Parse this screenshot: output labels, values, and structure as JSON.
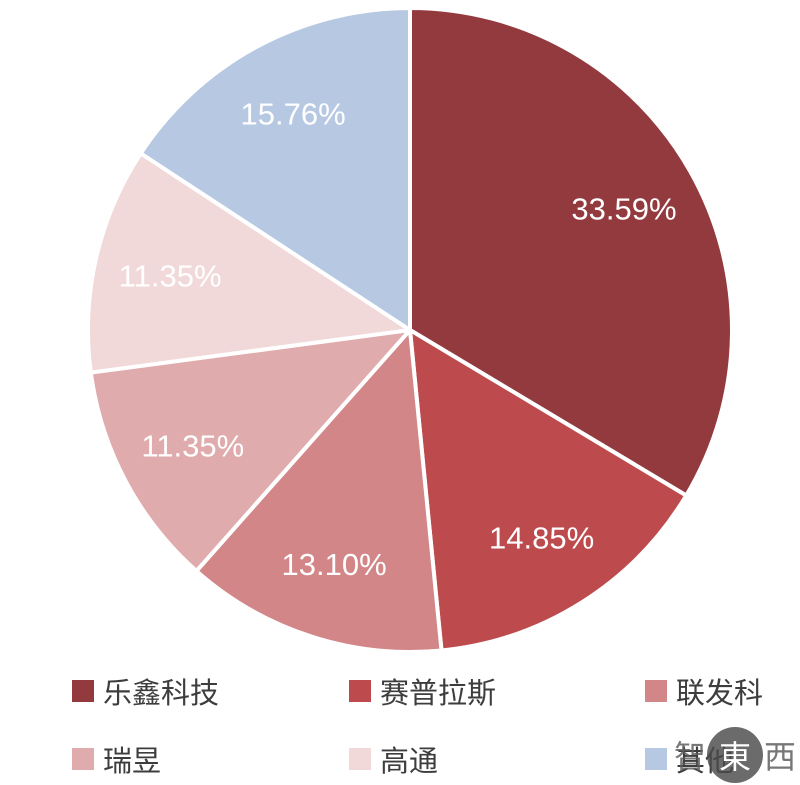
{
  "chart_data": {
    "type": "pie",
    "title": "",
    "direction": "clockwise",
    "start_angle_deg": 0,
    "center": [
      410,
      330
    ],
    "radius": 322,
    "label_radius": 246,
    "label_color": "#ffffff",
    "slice_border_color": "#ffffff",
    "legend_position": "bottom",
    "slices": [
      {
        "label": "乐鑫科技",
        "value": 33.59,
        "display": "33.59%",
        "color": "#933a3e"
      },
      {
        "label": "赛普拉斯",
        "value": 14.85,
        "display": "14.85%",
        "color": "#bd4b4d"
      },
      {
        "label": "联发科",
        "value": 13.1,
        "display": "13.10%",
        "color": "#d28688"
      },
      {
        "label": "瑞昱",
        "value": 11.35,
        "display": "11.35%",
        "color": "#e0abac"
      },
      {
        "label": "高通",
        "value": 11.35,
        "display": "11.35%",
        "color": "#f2d9d9"
      },
      {
        "label": "其他",
        "value": 15.76,
        "display": "15.76%",
        "color": "#b6c8e2"
      }
    ]
  },
  "watermark": {
    "prefix": "智",
    "circle_char": "東",
    "suffix": "西"
  }
}
